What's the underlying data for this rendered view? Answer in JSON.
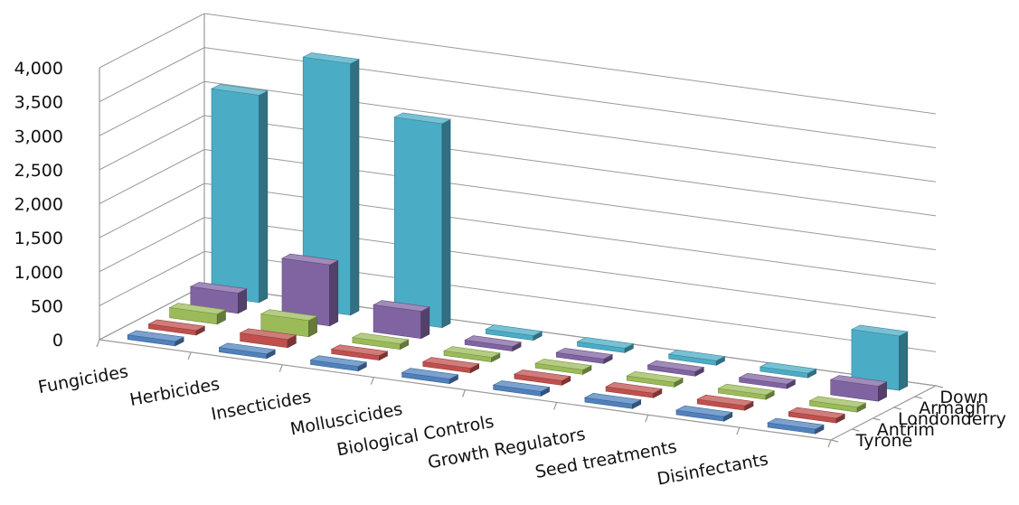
{
  "chart_data": {
    "type": "bar",
    "subtype": "3d-column",
    "title": "",
    "xlabel": "",
    "ylabel": "",
    "ylim": [
      0,
      4000
    ],
    "yticks": [
      "0",
      "500",
      "1,000",
      "1,500",
      "2,000",
      "2,500",
      "3,000",
      "3,500",
      "4,000"
    ],
    "grid": true,
    "categories": [
      "Fungicides",
      "Herbicides",
      "Insecticides",
      "Molluscicides",
      "Biological Controls",
      "Growth Regulators",
      "Seed treatments",
      "Disinfectants"
    ],
    "series": [
      {
        "name": "Tyrone",
        "color": "#4f81bd",
        "values": [
          30,
          30,
          30,
          10,
          0,
          0,
          0,
          60
        ]
      },
      {
        "name": "Antrim",
        "color": "#c0504d",
        "values": [
          40,
          120,
          20,
          0,
          0,
          20,
          60,
          0
        ]
      },
      {
        "name": "Londonderry",
        "color": "#9bbb59",
        "values": [
          150,
          240,
          80,
          0,
          0,
          0,
          0,
          70
        ]
      },
      {
        "name": "Armagh",
        "color": "#8064a2",
        "values": [
          300,
          900,
          400,
          50,
          0,
          0,
          0,
          220
        ]
      },
      {
        "name": "Down",
        "color": "#4bacc6",
        "values": [
          3050,
          3700,
          3000,
          20,
          10,
          10,
          10,
          800
        ]
      }
    ]
  }
}
